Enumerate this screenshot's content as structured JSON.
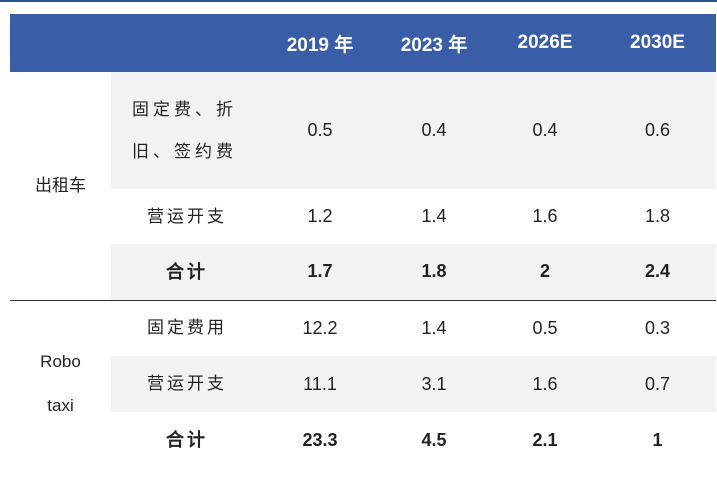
{
  "header": {
    "blank": "",
    "cols": [
      "2019 年",
      "2023 年",
      "2026E",
      "2030E"
    ]
  },
  "groups": [
    {
      "label": "出租车",
      "rows": [
        {
          "label": "固定费、折旧、签约费",
          "values": [
            "0.5",
            "0.4",
            "0.4",
            "0.6"
          ]
        },
        {
          "label": "营运开支",
          "values": [
            "1.2",
            "1.4",
            "1.6",
            "1.8"
          ]
        },
        {
          "label": "合计",
          "values": [
            "1.7",
            "1.8",
            "2",
            "2.4"
          ]
        }
      ]
    },
    {
      "label_lines": [
        "Robo",
        "taxi"
      ],
      "rows": [
        {
          "label": "固定费用",
          "values": [
            "12.2",
            "1.4",
            "0.5",
            "0.3"
          ]
        },
        {
          "label": "营运开支",
          "values": [
            "11.1",
            "3.1",
            "1.6",
            "0.7"
          ]
        },
        {
          "label": "合计",
          "values": [
            "23.3",
            "4.5",
            "2.1",
            "1"
          ]
        }
      ]
    }
  ]
}
